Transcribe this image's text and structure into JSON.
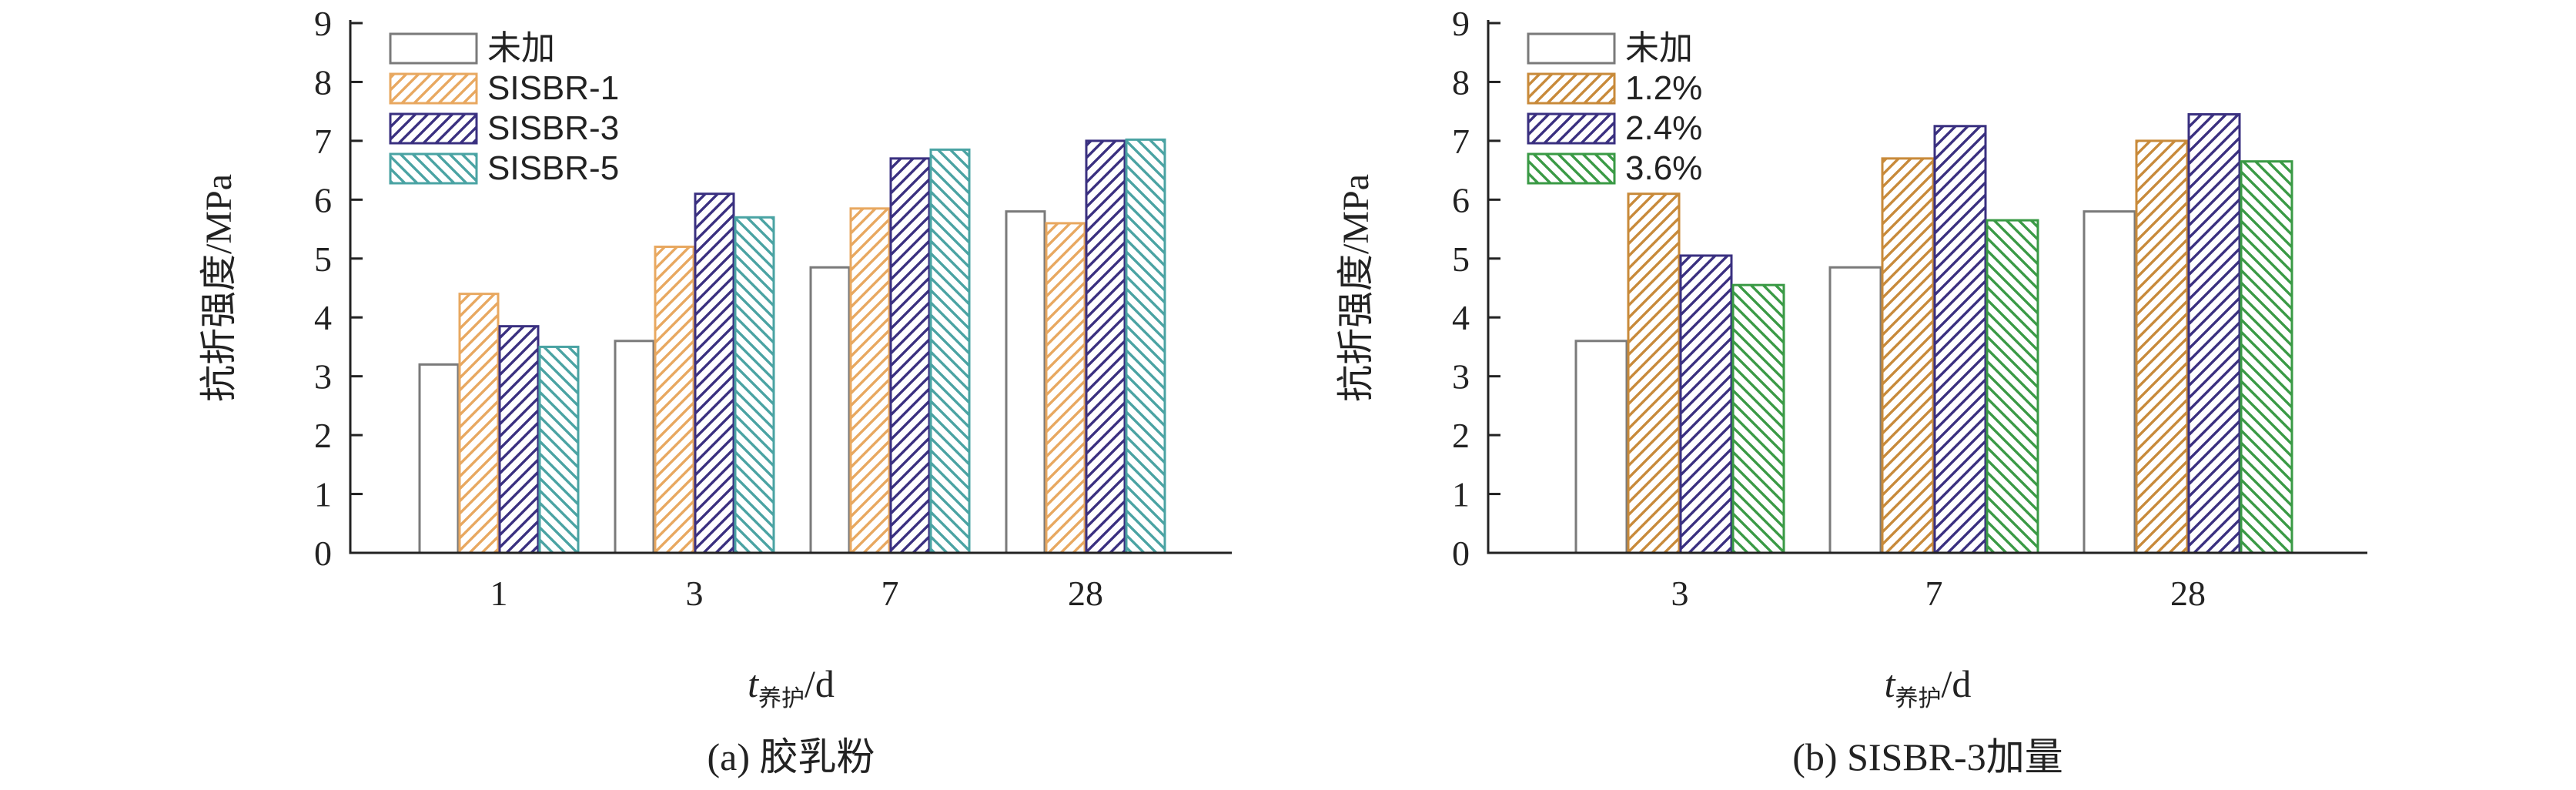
{
  "chart_data": [
    {
      "type": "bar",
      "caption": "(a) 胶乳粉",
      "ylabel": "抗折强度/MPa",
      "xlabel": {
        "main": "t",
        "sub": "养护",
        "unit": "/d"
      },
      "ylim": [
        0,
        9
      ],
      "yticks": [
        "0",
        "1",
        "2",
        "3",
        "4",
        "5",
        "6",
        "7",
        "8",
        "9"
      ],
      "categories": [
        "1",
        "3",
        "7",
        "28"
      ],
      "grid": false,
      "legend_position": "top-left",
      "series": [
        {
          "name": "未加",
          "values": [
            3.2,
            3.6,
            4.85,
            5.8
          ],
          "color": "#7a7a7a",
          "pattern": "none"
        },
        {
          "name": "SISBR-1",
          "values": [
            4.4,
            5.2,
            5.85,
            5.6
          ],
          "color": "#e8a860",
          "pattern": "hatch-right"
        },
        {
          "name": "SISBR-3",
          "values": [
            3.85,
            6.1,
            6.7,
            7.0
          ],
          "color": "#3a3080",
          "pattern": "hatch-right"
        },
        {
          "name": "SISBR-5",
          "values": [
            3.5,
            5.7,
            6.85,
            7.02
          ],
          "color": "#4aa3a3",
          "pattern": "hatch-left"
        }
      ]
    },
    {
      "type": "bar",
      "caption": "(b) SISBR-3加量",
      "ylabel": "抗折强度/MPa",
      "xlabel": {
        "main": "t",
        "sub": "养护",
        "unit": "/d"
      },
      "ylim": [
        0,
        9
      ],
      "yticks": [
        "0",
        "1",
        "2",
        "3",
        "4",
        "5",
        "6",
        "7",
        "8",
        "9"
      ],
      "categories": [
        "3",
        "7",
        "28"
      ],
      "grid": false,
      "legend_position": "top-left",
      "series": [
        {
          "name": "未加",
          "values": [
            3.6,
            4.85,
            5.8
          ],
          "color": "#7a7a7a",
          "pattern": "none"
        },
        {
          "name": "1.2%",
          "values": [
            6.1,
            6.7,
            7.0
          ],
          "color": "#c88a3a",
          "pattern": "hatch-right"
        },
        {
          "name": "2.4%",
          "values": [
            5.05,
            7.25,
            7.45
          ],
          "color": "#3a3080",
          "pattern": "hatch-right"
        },
        {
          "name": "3.6%",
          "values": [
            4.55,
            5.65,
            6.65
          ],
          "color": "#3a9a45",
          "pattern": "hatch-left"
        }
      ]
    }
  ]
}
